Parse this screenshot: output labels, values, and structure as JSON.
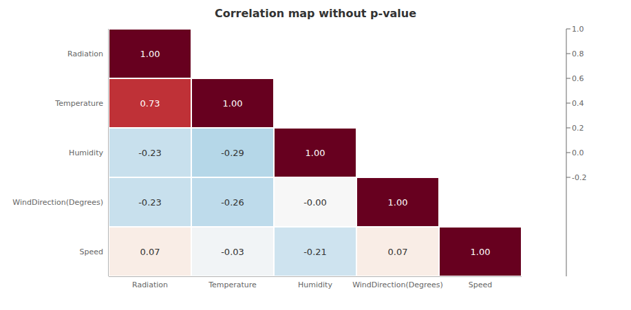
{
  "chart_data": {
    "type": "heatmap",
    "title": "Correlation map without p-value",
    "categories": [
      "Radiation",
      "Temperature",
      "Humidity",
      "WindDirection(Degrees)",
      "Speed"
    ],
    "values": [
      [
        1.0,
        null,
        null,
        null,
        null
      ],
      [
        0.73,
        1.0,
        null,
        null,
        null
      ],
      [
        -0.23,
        -0.29,
        1.0,
        null,
        null
      ],
      [
        -0.23,
        -0.26,
        -0.0,
        1.0,
        null
      ],
      [
        0.07,
        -0.03,
        -0.21,
        0.07,
        1.0
      ]
    ],
    "value_labels": [
      [
        "1.00",
        null,
        null,
        null,
        null
      ],
      [
        "0.73",
        "1.00",
        null,
        null,
        null
      ],
      [
        "-0.23",
        "-0.29",
        "1.00",
        null,
        null
      ],
      [
        "-0.23",
        "-0.26",
        "-0.00",
        "1.00",
        null
      ],
      [
        "0.07",
        "-0.03",
        "-0.21",
        "0.07",
        "1.00"
      ]
    ],
    "data_labels": true,
    "color": "RdBu_r",
    "colorbar_range": [
      -1.0,
      1.0
    ],
    "colorbar_ticks": [
      -0.2,
      {
        "value": 0.0,
        "label": "0.0"
      },
      0.2,
      0.4,
      0.6,
      0.8,
      {
        "value": 1.0,
        "label": "1.0"
      }
    ]
  }
}
